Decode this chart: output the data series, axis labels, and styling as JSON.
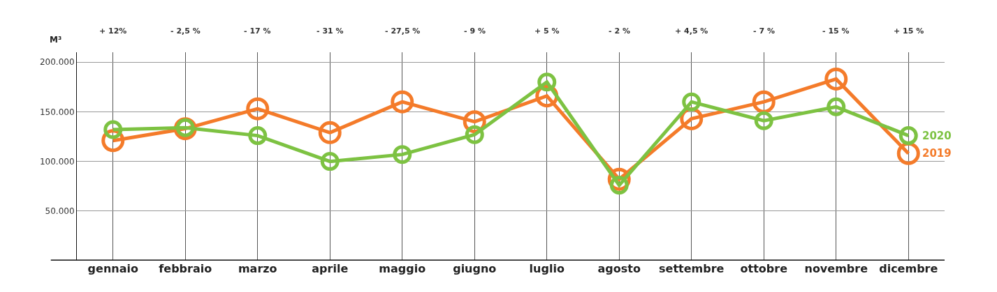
{
  "chart_data": {
    "type": "line",
    "ylabel": "M³",
    "categories": [
      "gennaio",
      "febbraio",
      "marzo",
      "aprile",
      "maggio",
      "giugno",
      "luglio",
      "agosto",
      "settembre",
      "ottobre",
      "novembre",
      "dicembre"
    ],
    "series": [
      {
        "name": "2019",
        "color": "#f47b2a",
        "values": [
          121000,
          133000,
          153000,
          129000,
          160000,
          140000,
          166000,
          82000,
          143000,
          160000,
          183000,
          108000
        ]
      },
      {
        "name": "2020",
        "color": "#7dc242",
        "values": [
          132000,
          134000,
          126000,
          100000,
          107000,
          127000,
          180000,
          76000,
          160000,
          141000,
          155000,
          126000
        ]
      }
    ],
    "annotations": [
      "+ 12%",
      "- 2,5 %",
      "- 17 %",
      "- 31 %",
      "- 27,5 %",
      "- 9 %",
      "+ 5 %",
      "- 2 %",
      "+ 4,5 %",
      "- 7 %",
      "- 15 %",
      "+ 15 %"
    ],
    "ylim": [
      0,
      210000
    ],
    "yticks": [
      {
        "value": 50000,
        "label": "50.000"
      },
      {
        "value": 100000,
        "label": "100.000"
      },
      {
        "value": 150000,
        "label": "150.000"
      },
      {
        "value": 200000,
        "label": "200.000"
      }
    ],
    "grid": true,
    "legend": false,
    "marker": "circle",
    "line_style": "solid"
  }
}
